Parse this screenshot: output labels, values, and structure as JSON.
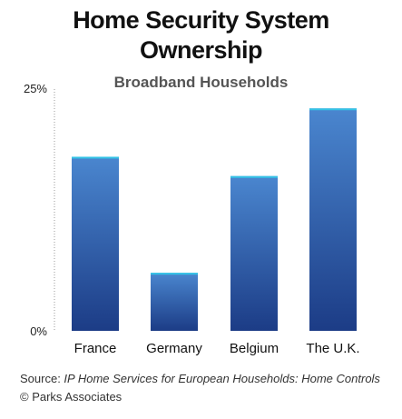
{
  "chart_data": {
    "type": "bar",
    "title": "Home Security System Ownership",
    "title_line1": "Home Security System",
    "title_line2": "Ownership",
    "subtitle": "Broadband Households",
    "categories": [
      "France",
      "Germany",
      "Belgium",
      "The U.K."
    ],
    "values": [
      18,
      6,
      16,
      23
    ],
    "unit": "%",
    "ylim": [
      0,
      25
    ],
    "yticks": [
      "0%",
      "25%"
    ],
    "xlabel": "",
    "ylabel": "",
    "grid": false,
    "bar_color_top": "#4a86cf",
    "bar_color_bottom": "#1c3c86",
    "bar_cap_color": "#33c3e6"
  },
  "footer": {
    "source_prefix": "Source: ",
    "source_title": "IP Home Services for European Households: Home Controls",
    "copyright": "© Parks Associates"
  }
}
